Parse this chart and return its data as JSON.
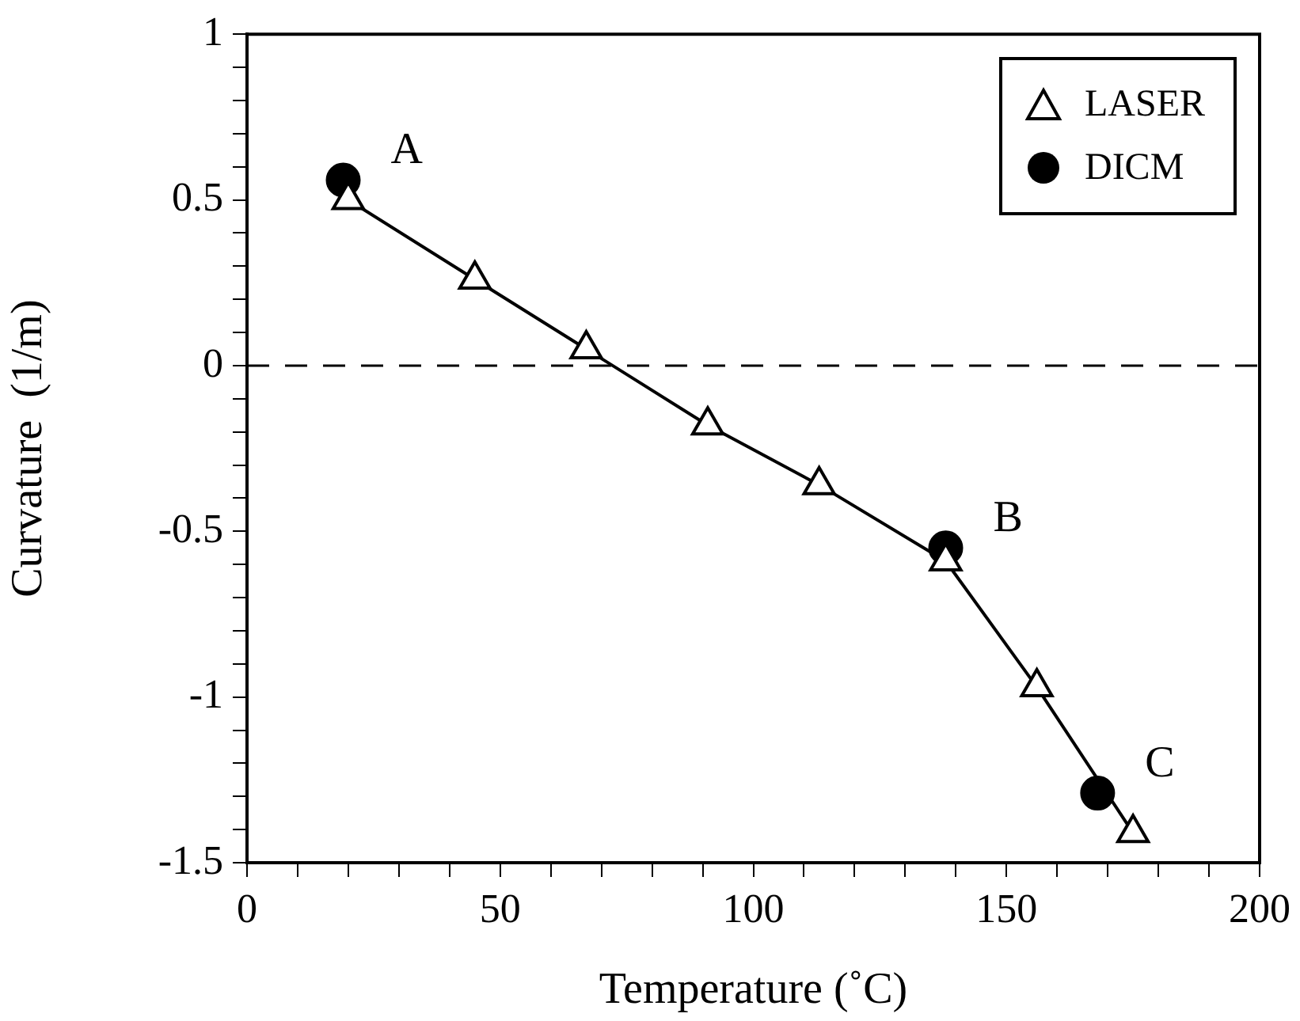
{
  "chart_data": {
    "type": "line",
    "xlabel": "Temperature (˚C)",
    "ylabel": "Curvature  (1/m)",
    "xlim": [
      0,
      200
    ],
    "xticks": [
      0,
      {
        "value": 10,
        "label": null
      },
      {
        "value": 20,
        "label": null
      },
      {
        "value": 30,
        "label": null
      },
      {
        "value": 40,
        "label": null
      },
      50,
      {
        "value": 60,
        "label": null
      },
      {
        "value": 70,
        "label": null
      },
      {
        "value": 80,
        "label": null
      },
      {
        "value": 90,
        "label": null
      },
      100,
      {
        "value": 110,
        "label": null
      },
      {
        "value": 120,
        "label": null
      },
      {
        "value": 130,
        "label": null
      },
      {
        "value": 140,
        "label": null
      },
      150,
      {
        "value": 160,
        "label": null
      },
      {
        "value": 170,
        "label": null
      },
      {
        "value": 180,
        "label": null
      },
      {
        "value": 190,
        "label": null
      },
      200
    ],
    "ylim": [
      -1.5,
      1
    ],
    "yticks": [
      -1.5,
      {
        "value": -1.4,
        "label": null
      },
      {
        "value": -1.3,
        "label": null
      },
      {
        "value": -1.2,
        "label": null
      },
      {
        "value": -1.1,
        "label": null
      },
      -1,
      {
        "value": -0.9,
        "label": null
      },
      {
        "value": -0.8,
        "label": null
      },
      {
        "value": -0.7,
        "label": null
      },
      {
        "value": -0.6,
        "label": null
      },
      -0.5,
      {
        "value": -0.4,
        "label": null
      },
      {
        "value": -0.3,
        "label": null
      },
      {
        "value": -0.2,
        "label": null
      },
      {
        "value": -0.1,
        "label": null
      },
      0,
      {
        "value": 0.1,
        "label": null
      },
      {
        "value": 0.2,
        "label": null
      },
      {
        "value": 0.3,
        "label": null
      },
      {
        "value": 0.4,
        "label": null
      },
      0.5,
      {
        "value": 0.6,
        "label": null
      },
      {
        "value": 0.7,
        "label": null
      },
      {
        "value": 0.8,
        "label": null
      },
      {
        "value": 0.9,
        "label": null
      },
      1
    ],
    "grid": false,
    "legend": "top right",
    "series": [
      {
        "name": "LASER",
        "type": "line",
        "marker": "triangle",
        "line_style": "solid",
        "color": "#000000",
        "x": [
          20,
          45,
          67,
          91,
          113,
          138,
          156,
          175
        ],
        "values": [
          0.5,
          0.26,
          0.05,
          -0.18,
          -0.36,
          -0.59,
          -0.97,
          -1.41
        ]
      },
      {
        "name": "DICM",
        "type": "scatter",
        "marker": "circle",
        "color": "#000000",
        "x": [
          19,
          138,
          168
        ],
        "values": [
          0.56,
          -0.55,
          -1.29
        ]
      }
    ],
    "ref_lines": [
      {
        "axis": "y",
        "value": 0,
        "color": "#000000",
        "line_style": "dashed"
      }
    ],
    "annotations": [
      {
        "text": "A",
        "x": 19,
        "y": 0.56
      },
      {
        "text": "B",
        "x": 138,
        "y": -0.55
      },
      {
        "text": "C",
        "x": 168,
        "y": -1.29
      }
    ]
  }
}
